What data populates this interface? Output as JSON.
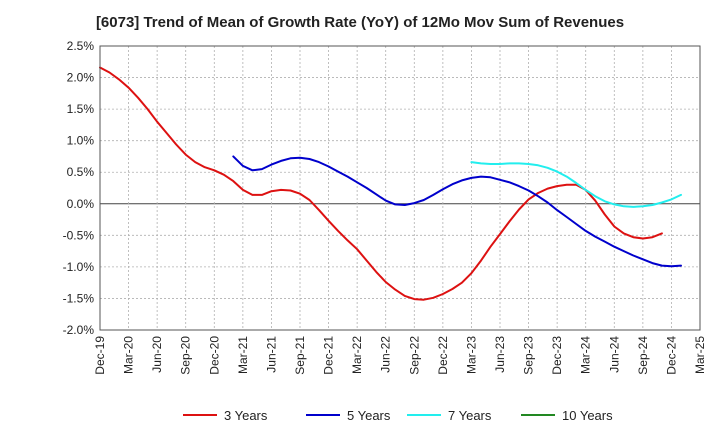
{
  "chart_data": {
    "type": "line",
    "title": "[6073]  Trend of Mean of Growth Rate (YoY) of 12Mo Mov Sum of Revenues",
    "xlabel": "",
    "ylabel": "",
    "ylim": [
      -2.0,
      2.5
    ],
    "y_ticks": [
      "2.5%",
      "2.0%",
      "1.5%",
      "1.0%",
      "0.5%",
      "0.0%",
      "-0.5%",
      "-1.0%",
      "-1.5%",
      "-2.0%"
    ],
    "y_tick_values": [
      2.5,
      2.0,
      1.5,
      1.0,
      0.5,
      0.0,
      -0.5,
      -1.0,
      -1.5,
      -2.0
    ],
    "x_ticks": [
      "Dec-19",
      "Mar-20",
      "Jun-20",
      "Sep-20",
      "Dec-20",
      "Mar-21",
      "Jun-21",
      "Sep-21",
      "Dec-21",
      "Mar-22",
      "Jun-22",
      "Sep-22",
      "Dec-22",
      "Mar-23",
      "Jun-23",
      "Sep-23",
      "Dec-23",
      "Mar-24",
      "Jun-24",
      "Sep-24",
      "Dec-24",
      "Mar-25"
    ],
    "grid": true,
    "legend_position": "bottom",
    "series": [
      {
        "name": "3 Years",
        "color": "#dd1111",
        "start_index": 0,
        "values": [
          2.16,
          2.08,
          1.97,
          1.84,
          1.68,
          1.5,
          1.3,
          1.12,
          0.94,
          0.78,
          0.66,
          0.58,
          0.53,
          0.46,
          0.36,
          0.22,
          0.14,
          0.14,
          0.2,
          0.22,
          0.21,
          0.16,
          0.06,
          -0.1,
          -0.27,
          -0.43,
          -0.58,
          -0.72,
          -0.9,
          -1.08,
          -1.24,
          -1.36,
          -1.46,
          -1.51,
          -1.52,
          -1.49,
          -1.43,
          -1.35,
          -1.25,
          -1.1,
          -0.9,
          -0.68,
          -0.48,
          -0.28,
          -0.09,
          0.07,
          0.17,
          0.24,
          0.28,
          0.3,
          0.3,
          0.22,
          0.05,
          -0.17,
          -0.36,
          -0.47,
          -0.53,
          -0.55,
          -0.53,
          -0.47
        ]
      },
      {
        "name": "5 Years",
        "color": "#0000cc",
        "start_index": 14,
        "values": [
          0.75,
          0.6,
          0.53,
          0.55,
          0.62,
          0.68,
          0.72,
          0.73,
          0.71,
          0.66,
          0.59,
          0.51,
          0.43,
          0.34,
          0.25,
          0.15,
          0.05,
          -0.01,
          -0.02,
          0.01,
          0.06,
          0.14,
          0.23,
          0.31,
          0.37,
          0.41,
          0.43,
          0.42,
          0.38,
          0.34,
          0.28,
          0.21,
          0.12,
          0.02,
          -0.1,
          -0.21,
          -0.32,
          -0.43,
          -0.52,
          -0.6,
          -0.68,
          -0.75,
          -0.82,
          -0.88,
          -0.94,
          -0.98,
          -0.99,
          -0.98
        ]
      },
      {
        "name": "7 Years",
        "color": "#22eeee",
        "start_index": 39,
        "values": [
          0.66,
          0.64,
          0.63,
          0.63,
          0.64,
          0.64,
          0.63,
          0.61,
          0.57,
          0.51,
          0.43,
          0.33,
          0.22,
          0.12,
          0.04,
          -0.01,
          -0.04,
          -0.05,
          -0.04,
          -0.02,
          0.02,
          0.07,
          0.14
        ]
      },
      {
        "name": "10 Years",
        "color": "#228822",
        "start_index": 0,
        "values": []
      }
    ]
  }
}
